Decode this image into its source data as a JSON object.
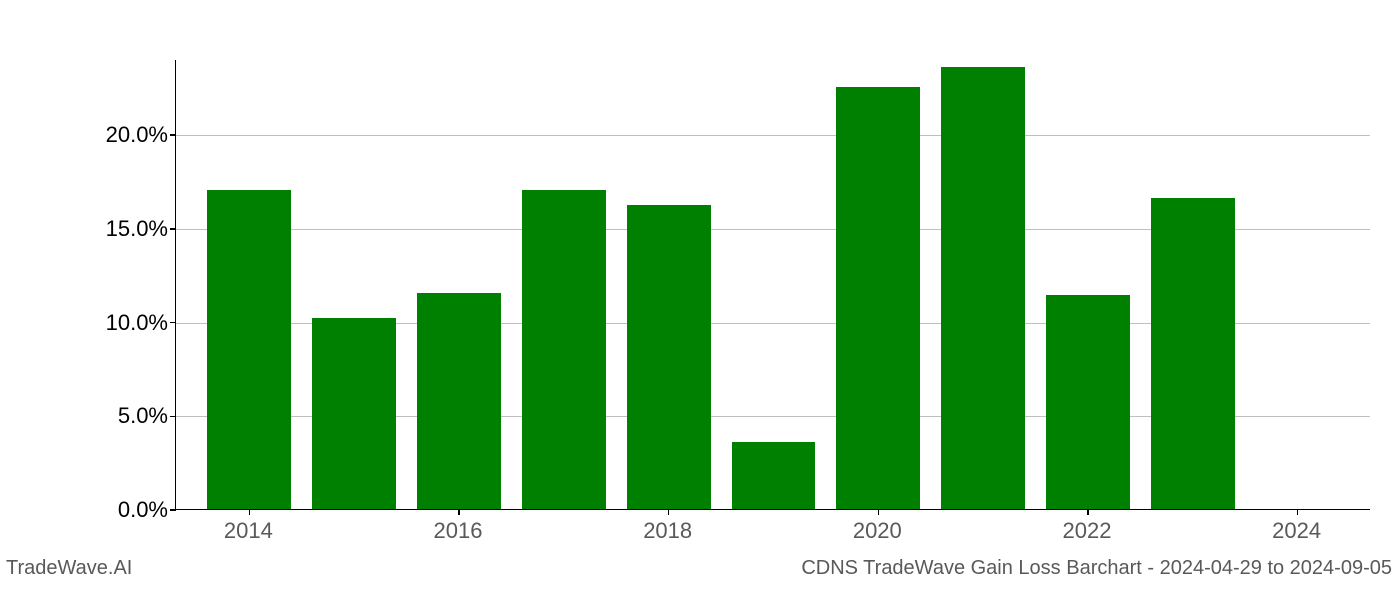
{
  "chart": {
    "type": "bar",
    "background_color": "#ffffff",
    "grid_color": "#bfbfbf",
    "axis_color": "#000000",
    "bar_color": "#008000",
    "years": [
      2014,
      2015,
      2016,
      2017,
      2018,
      2019,
      2020,
      2021,
      2022,
      2023,
      2024
    ],
    "values": [
      17.0,
      10.2,
      11.5,
      17.0,
      16.2,
      3.6,
      22.5,
      23.6,
      11.4,
      16.6,
      0.0
    ],
    "ylim": [
      0,
      24
    ],
    "ytick_values": [
      0,
      5,
      10,
      15,
      20
    ],
    "ytick_labels": [
      "0.0%",
      "5.0%",
      "10.0%",
      "15.0%",
      "20.0%"
    ],
    "xtick_values": [
      2014,
      2016,
      2018,
      2020,
      2022,
      2024
    ],
    "xtick_labels": [
      "2014",
      "2016",
      "2018",
      "2020",
      "2022",
      "2024"
    ],
    "bar_width": 0.8,
    "label_fontsize": 22,
    "tick_color": "#595959"
  },
  "footer": {
    "left": "TradeWave.AI",
    "right": "CDNS TradeWave Gain Loss Barchart - 2024-04-29 to 2024-09-05"
  }
}
